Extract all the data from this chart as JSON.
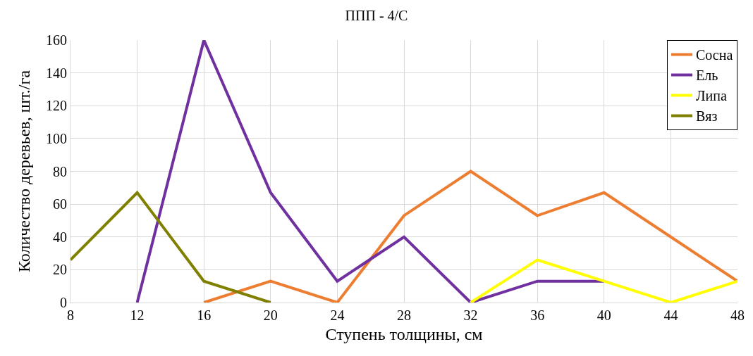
{
  "chart_data": {
    "type": "line",
    "title": "ППП - 4/С",
    "xlabel": "Ступень толщины, см",
    "ylabel": "Количество деревьев, шт./га",
    "x": [
      8,
      12,
      16,
      20,
      24,
      28,
      32,
      36,
      40,
      44,
      48
    ],
    "series": [
      {
        "name": "Сосна",
        "color": "#ed7d31",
        "values": [
          null,
          null,
          0,
          13,
          0,
          53,
          80,
          53,
          67,
          40,
          13
        ]
      },
      {
        "name": "Ель",
        "color": "#7030a0",
        "values": [
          null,
          0,
          160,
          67,
          13,
          40,
          0,
          13,
          13,
          null,
          null
        ]
      },
      {
        "name": "Липа",
        "color": "#ffff00",
        "values": [
          null,
          null,
          null,
          null,
          null,
          null,
          0,
          26,
          13,
          0,
          13
        ]
      },
      {
        "name": "Вяз",
        "color": "#808000",
        "values": [
          26,
          67,
          13,
          0,
          null,
          null,
          null,
          null,
          null,
          null,
          null
        ]
      }
    ],
    "xlim": [
      8,
      48
    ],
    "xticks": [
      8,
      12,
      16,
      20,
      24,
      28,
      32,
      36,
      40,
      44,
      48
    ],
    "ylim": [
      0,
      160
    ],
    "yticks": [
      0,
      20,
      40,
      60,
      80,
      100,
      120,
      140,
      160
    ],
    "grid": true,
    "legend": "top right",
    "marker": "none",
    "line_style": "solid"
  }
}
